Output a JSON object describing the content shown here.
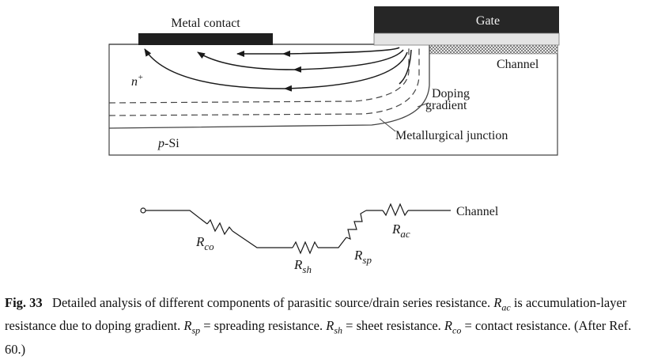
{
  "figure": {
    "labels": {
      "metal_contact": "Metal contact",
      "gate": "Gate",
      "channel": "Channel",
      "n_plus_base": "n",
      "n_plus_sup": "+",
      "p_si_prefix": "p",
      "p_si_suffix": "-Si",
      "doping_gradient_line1": "Doping",
      "doping_gradient_line2": "gradient",
      "metallurgical_junction": "Metallurgical junction"
    },
    "circuit": {
      "channel_label": "Channel",
      "resistors": [
        {
          "symbol": "R",
          "sub": "co"
        },
        {
          "symbol": "R",
          "sub": "sh"
        },
        {
          "symbol": "R",
          "sub": "sp"
        },
        {
          "symbol": "R",
          "sub": "ac"
        }
      ]
    }
  },
  "caption": {
    "fig_label": "Fig. 33",
    "line1_text": "Detailed analysis of different components of parasitic source/drain series resistance.",
    "terms": [
      {
        "symbol": "R",
        "sub": "ac",
        "desc": " is accumulation-layer resistance due to doping gradient. "
      },
      {
        "symbol": "R",
        "sub": "sp",
        "desc": " = spreading resistance. "
      },
      {
        "symbol": "R",
        "sub": "sh",
        "desc": " = sheet resistance. "
      },
      {
        "symbol": "R",
        "sub": "co",
        "desc": " = contact resistance. (After Ref. 60.)"
      }
    ]
  }
}
